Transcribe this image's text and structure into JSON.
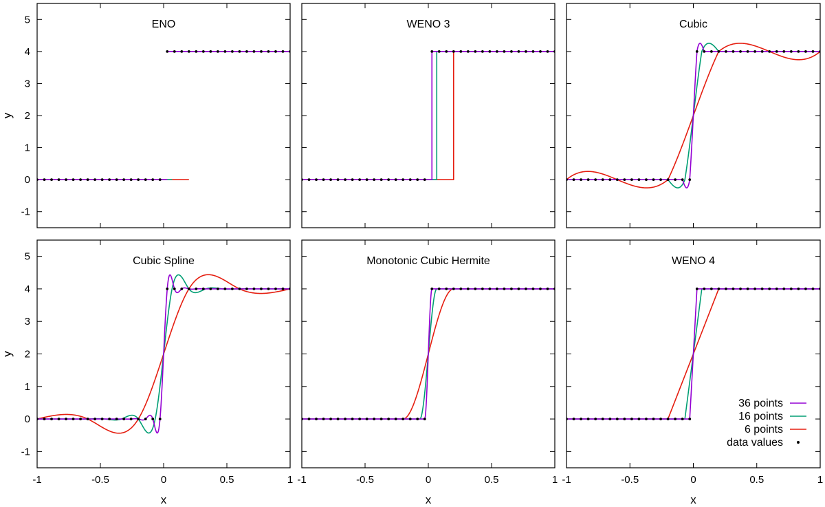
{
  "chart_data": {
    "type": "line",
    "layout": "2x3 grid of subplots",
    "shared": {
      "xlabel": "x",
      "ylabel": "y",
      "xlim": [
        -1,
        1
      ],
      "ylim": [
        -1.5,
        5.5
      ],
      "xticks": [
        -1,
        -0.5,
        0,
        0.5,
        1
      ],
      "xtick_labels": [
        "-1",
        "-0.5",
        "0",
        "0.5",
        "1"
      ],
      "yticks": [
        -1,
        0,
        1,
        2,
        3,
        4,
        5
      ],
      "ytick_labels": [
        "-1",
        "0",
        "1",
        "2",
        "3",
        "4",
        "5"
      ],
      "underlying_function": "step: y=0 for x<0, y=4 for x>0"
    },
    "series": [
      {
        "name": "36 points",
        "color": "#9400d3",
        "points": 36
      },
      {
        "name": "16 points",
        "color": "#009e73",
        "points": 16
      },
      {
        "name": "6 points",
        "color": "#e51e10",
        "points": 6
      },
      {
        "name": "data values",
        "color": "#000000",
        "marker": "dot",
        "points": 36
      }
    ],
    "legend_position": "bottom-right of last panel",
    "panels": [
      {
        "title": "ENO",
        "method": "eno",
        "notes": "each resolution drawn only where defined: y=0 up to x=0.2 (6 points), y=4 from x=0.03"
      },
      {
        "title": "WENO 3",
        "method": "weno3",
        "notes": "vertical jumps at x=0.03 (36), 0.067 (16), 0.2 (6)"
      },
      {
        "title": "Cubic",
        "method": "cubic",
        "notes": "local cubic, overshoot max about 4.25, undershoot about -0.25"
      },
      {
        "title": "Cubic Spline",
        "method": "spline",
        "notes": "natural cubic spline with Gibbs-like ringing up to about 4.4 / -0.45"
      },
      {
        "title": "Monotonic Cubic Hermite",
        "method": "hermite",
        "notes": "monotone transition, no overshoot"
      },
      {
        "title": "WENO 4",
        "method": "weno4",
        "notes": "linear ramp across one cell at each resolution"
      }
    ]
  }
}
